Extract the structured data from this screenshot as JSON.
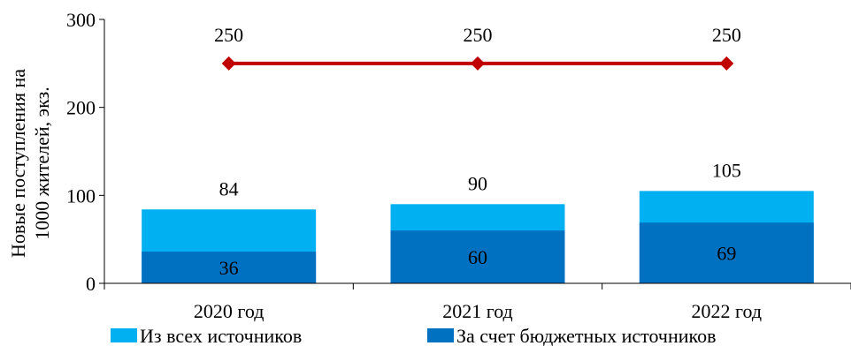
{
  "chart_data": {
    "type": "bar",
    "categories": [
      "2020 год",
      "2021 год",
      "2022 год"
    ],
    "ylim": [
      0,
      300
    ],
    "yticks": [
      0,
      100,
      200,
      300
    ],
    "ylabel_lines": [
      "Новые поступления на",
      "1000 жителей, экз."
    ],
    "grid": false,
    "legend_position": "bottom",
    "series": [
      {
        "name": "Из всех источников",
        "kind": "bar",
        "values": [
          84,
          90,
          105
        ],
        "color": "#00b0f0"
      },
      {
        "name": "За счет бюджетных источников",
        "kind": "bar",
        "values": [
          36,
          60,
          69
        ],
        "color": "#0070c0"
      },
      {
        "name": "",
        "kind": "line",
        "values": [
          250,
          250,
          250
        ],
        "color": "#c00000"
      }
    ]
  }
}
